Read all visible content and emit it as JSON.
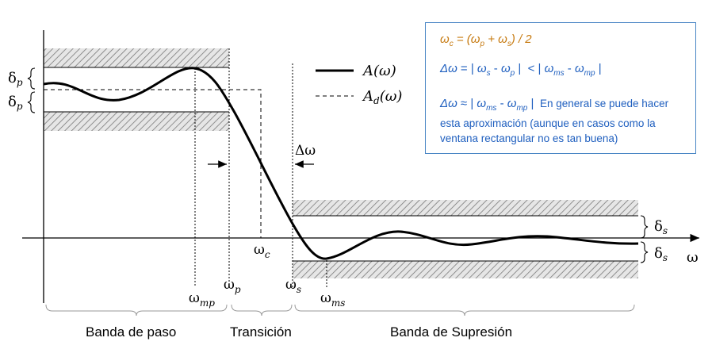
{
  "labels": {
    "delta_p_upper": "δp",
    "delta_p_lower": "δp",
    "delta_s_upper": "δs",
    "delta_s_lower": "δs",
    "omega_axis": "ω",
    "omega_c": "ωc",
    "omega_mp": "ωmp",
    "omega_p": "ωp",
    "omega_s": "ωs",
    "omega_ms": "ωms",
    "delta_omega": "Δω"
  },
  "legend": {
    "actual": "A(ω)",
    "desired": "Ad(ω)"
  },
  "bands": {
    "pass": "Banda de paso",
    "transition": "Transición",
    "stop": "Banda de Supresión"
  },
  "info": {
    "formula_wc": "ωc = (ωp + ωs) / 2",
    "formula_dw_exact": "Δω = | ωs - ωp | < | ωms - ωmp |",
    "formula_dw_approx": "Δω ≈ | ωms - ωmp |",
    "approx_note": "En general se puede hacer esta aproximación (aunque en casos como la ventana rectangular no es tan buena)",
    "formula_color": "#c77b12",
    "text_color": "#1f5fbf"
  }
}
